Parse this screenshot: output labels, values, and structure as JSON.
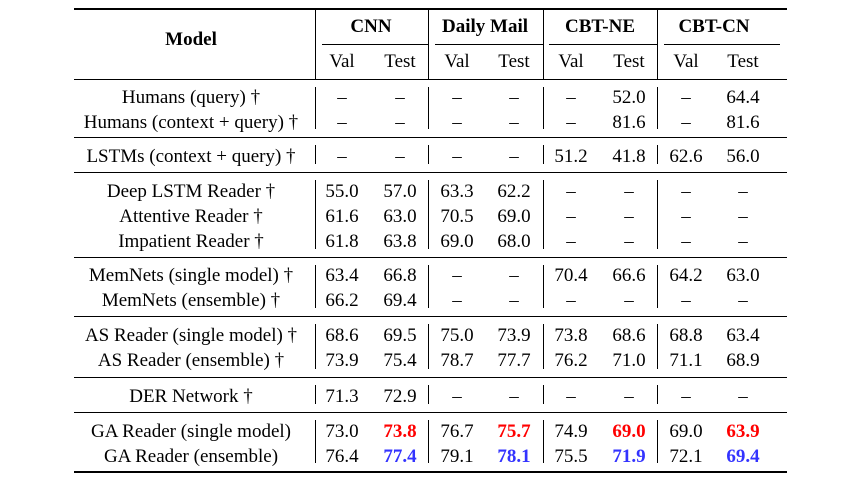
{
  "header": {
    "model": "Model",
    "groups": [
      "CNN",
      "Daily Mail",
      "CBT-NE",
      "CBT-CN"
    ],
    "sub": [
      "Val",
      "Test",
      "Val",
      "Test",
      "Val",
      "Test",
      "Val",
      "Test"
    ]
  },
  "rows": [
    {
      "model": "Humans (query) †",
      "vals": [
        "–",
        "–",
        "–",
        "–",
        "–",
        "52.0",
        "–",
        "64.4"
      ]
    },
    {
      "model": "Humans (context + query) †",
      "vals": [
        "–",
        "–",
        "–",
        "–",
        "–",
        "81.6",
        "–",
        "81.6"
      ]
    },
    {
      "model": "LSTMs (context + query) †",
      "vals": [
        "–",
        "–",
        "–",
        "–",
        "51.2",
        "41.8",
        "62.6",
        "56.0"
      ]
    },
    {
      "model": "Deep LSTM Reader †",
      "vals": [
        "55.0",
        "57.0",
        "63.3",
        "62.2",
        "–",
        "–",
        "–",
        "–"
      ]
    },
    {
      "model": "Attentive Reader †",
      "vals": [
        "61.6",
        "63.0",
        "70.5",
        "69.0",
        "–",
        "–",
        "–",
        "–"
      ]
    },
    {
      "model": "Impatient Reader †",
      "vals": [
        "61.8",
        "63.8",
        "69.0",
        "68.0",
        "–",
        "–",
        "–",
        "–"
      ]
    },
    {
      "model": "MemNets (single model) †",
      "vals": [
        "63.4",
        "66.8",
        "–",
        "–",
        "70.4",
        "66.6",
        "64.2",
        "63.0"
      ]
    },
    {
      "model": "MemNets (ensemble) †",
      "vals": [
        "66.2",
        "69.4",
        "–",
        "–",
        "–",
        "–",
        "–",
        "–"
      ]
    },
    {
      "model": "AS Reader (single model) †",
      "vals": [
        "68.6",
        "69.5",
        "75.0",
        "73.9",
        "73.8",
        "68.6",
        "68.8",
        "63.4"
      ]
    },
    {
      "model": "AS Reader (ensemble) †",
      "vals": [
        "73.9",
        "75.4",
        "78.7",
        "77.7",
        "76.2",
        "71.0",
        "71.1",
        "68.9"
      ]
    },
    {
      "model": "DER Network †",
      "vals": [
        "71.3",
        "72.9",
        "–",
        "–",
        "–",
        "–",
        "–",
        "–"
      ]
    },
    {
      "model": "GA Reader (single model)",
      "vals": [
        "73.0",
        "73.8",
        "76.7",
        "75.7",
        "74.9",
        "69.0",
        "69.0",
        "63.9"
      ]
    },
    {
      "model": "GA Reader (ensemble)",
      "vals": [
        "76.4",
        "77.4",
        "79.1",
        "78.1",
        "75.5",
        "71.9",
        "72.1",
        "69.4"
      ]
    }
  ],
  "highlight_colors": {
    "red": "#ff0000",
    "blue": "#3333ff"
  }
}
